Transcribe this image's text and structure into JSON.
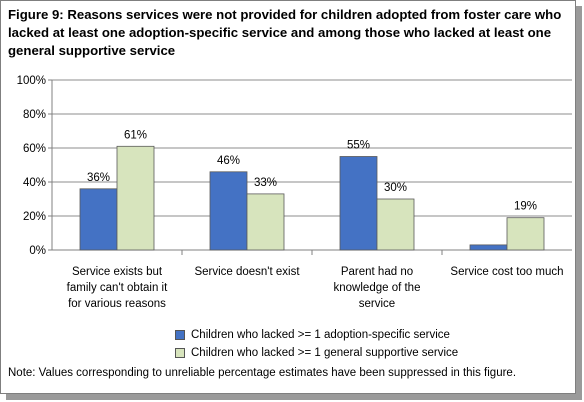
{
  "chart_data": {
    "type": "bar",
    "title": "Figure 9: Reasons services were not provided for children adopted from foster care who lacked at least one adoption-specific service and among those who lacked at least one general supportive service",
    "categories": [
      [
        "Service exists but",
        "family can't obtain it",
        "for various reasons"
      ],
      [
        "Service doesn't exist"
      ],
      [
        "Parent had no",
        "knowledge of the",
        "service"
      ],
      [
        "Service cost too much"
      ]
    ],
    "series": [
      {
        "name": "Children who lacked >= 1 adoption-specific service",
        "color": "#4472c4",
        "values": [
          36,
          46,
          55,
          3
        ],
        "labels": [
          "36%",
          "46%",
          "55%",
          ""
        ]
      },
      {
        "name": "Children who lacked >= 1 general supportive service",
        "color": "#d7e4bd",
        "values": [
          61,
          33,
          30,
          19
        ],
        "labels": [
          "61%",
          "33%",
          "30%",
          "19%"
        ]
      }
    ],
    "ylim": [
      0,
      100
    ],
    "yticks": [
      "0%",
      "20%",
      "40%",
      "60%",
      "80%",
      "100%"
    ],
    "grid": true,
    "legend": "bottom",
    "note": "Note: Values corresponding to unreliable percentage estimates have been suppressed in this figure."
  }
}
